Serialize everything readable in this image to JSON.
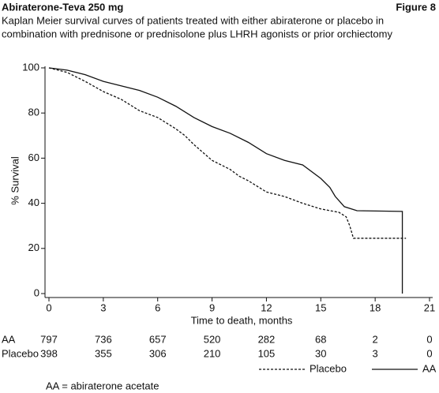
{
  "chart_data": {
    "type": "line",
    "title": "Abiraterone-Teva 250 mg",
    "figure_label": "Figure 8",
    "subtitle": [
      "Kaplan Meier survival curves of patients treated with either abiraterone or placebo in",
      "combination with prednisone or prednisolone plus LHRH agonists or prior orchiectomy"
    ],
    "x_label": "Time to death, months",
    "y_label": "% Survival",
    "xlim": [
      0,
      21
    ],
    "xticks": [
      0,
      3,
      6,
      9,
      12,
      15,
      18,
      21
    ],
    "ylim": [
      0,
      100
    ],
    "yticks": [
      0,
      20,
      40,
      60,
      80,
      100
    ],
    "series": [
      {
        "name": "Placebo",
        "color": "#111111",
        "dashed": true,
        "x": [
          0,
          1,
          2,
          3,
          4,
          5,
          6,
          7,
          7.5,
          8,
          9,
          10,
          10.5,
          11,
          12,
          13,
          14,
          15,
          16,
          16.4,
          16.6,
          16.8,
          19.7
        ],
        "values": [
          100,
          98,
          94,
          89.5,
          86,
          81,
          78,
          73,
          70,
          66,
          59,
          55,
          52,
          50,
          45,
          43,
          40,
          37.5,
          36,
          34,
          30,
          24.5,
          24.5
        ]
      },
      {
        "name": "AA",
        "color": "#111111",
        "dashed": false,
        "x": [
          0,
          1,
          2,
          3,
          4,
          5,
          6,
          7,
          8,
          9,
          10,
          11,
          12,
          13,
          14,
          15,
          15.5,
          15.8,
          16.3,
          17,
          19.5,
          19.5
        ],
        "values": [
          100,
          99,
          97,
          94,
          92,
          90,
          87,
          83,
          78,
          74,
          71,
          67,
          62,
          59,
          57,
          51,
          47,
          43,
          38.5,
          36.7,
          36.4,
          0
        ]
      }
    ],
    "risk_table": [
      {
        "label": "AA",
        "values": [
          797,
          736,
          657,
          520,
          282,
          68,
          2,
          0
        ]
      },
      {
        "label": "Placebo",
        "values": [
          398,
          355,
          306,
          210,
          105,
          30,
          3,
          0
        ]
      }
    ],
    "footnote": "AA = abiraterone acetate"
  }
}
